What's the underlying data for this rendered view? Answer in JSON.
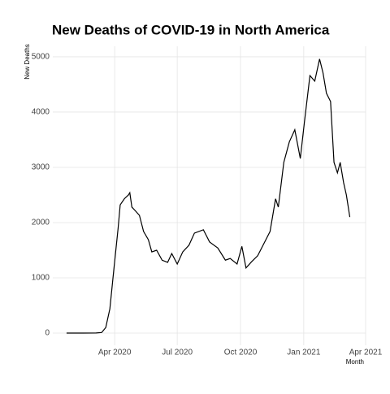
{
  "chart_data": {
    "type": "line",
    "title": "New Deaths of COVID-19 in North America",
    "x_label": "Month",
    "y_label": "New Deaths",
    "x": [
      "2020-01-22",
      "2020-02-15",
      "2020-03-05",
      "2020-03-13",
      "2020-03-19",
      "2020-03-25",
      "2020-03-31",
      "2020-04-06",
      "2020-04-09",
      "2020-04-15",
      "2020-04-21",
      "2020-04-23",
      "2020-04-26",
      "2020-05-02",
      "2020-05-07",
      "2020-05-13",
      "2020-05-20",
      "2020-05-25",
      "2020-06-01",
      "2020-06-09",
      "2020-06-17",
      "2020-06-23",
      "2020-07-01",
      "2020-07-09",
      "2020-07-18",
      "2020-07-26",
      "2020-08-08",
      "2020-08-17",
      "2020-08-29",
      "2020-09-09",
      "2020-09-16",
      "2020-09-26",
      "2020-10-03",
      "2020-10-09",
      "2020-10-17",
      "2020-10-26",
      "2020-11-04",
      "2020-11-13",
      "2020-11-21",
      "2020-11-25",
      "2020-12-03",
      "2020-12-11",
      "2020-12-19",
      "2020-12-27",
      "2021-01-02",
      "2021-01-10",
      "2021-01-17",
      "2021-01-24",
      "2021-01-29",
      "2021-02-03",
      "2021-02-09",
      "2021-02-14",
      "2021-02-19",
      "2021-02-23",
      "2021-02-28",
      "2021-03-04",
      "2021-03-09"
    ],
    "series": [
      {
        "name": "New Deaths",
        "color": "#000000",
        "values": [
          0,
          0,
          2,
          10,
          100,
          440,
          1180,
          1900,
          2320,
          2430,
          2500,
          2540,
          2280,
          2200,
          2130,
          1840,
          1690,
          1470,
          1500,
          1320,
          1280,
          1440,
          1250,
          1470,
          1590,
          1810,
          1870,
          1650,
          1540,
          1320,
          1350,
          1250,
          1570,
          1180,
          1290,
          1400,
          1620,
          1840,
          2430,
          2280,
          3090,
          3460,
          3680,
          3160,
          3820,
          4660,
          4560,
          4960,
          4710,
          4340,
          4190,
          3090,
          2900,
          3090,
          2720,
          2500,
          2100
        ]
      }
    ],
    "xlim": [
      "2020-01-02",
      "2021-04-01"
    ],
    "xticks": [
      {
        "value": "2020-04-01",
        "label": "Apr 2020"
      },
      {
        "value": "2020-07-01",
        "label": "Jul 2020"
      },
      {
        "value": "2020-10-01",
        "label": "Oct 2020"
      },
      {
        "value": "2021-01-01",
        "label": "Jan 2021"
      },
      {
        "value": "2021-04-01",
        "label": "Apr 2021"
      }
    ],
    "ylim": [
      -220,
      5190
    ],
    "yticks": [
      0,
      1000,
      2000,
      3000,
      4000,
      5000
    ],
    "grid": true
  }
}
